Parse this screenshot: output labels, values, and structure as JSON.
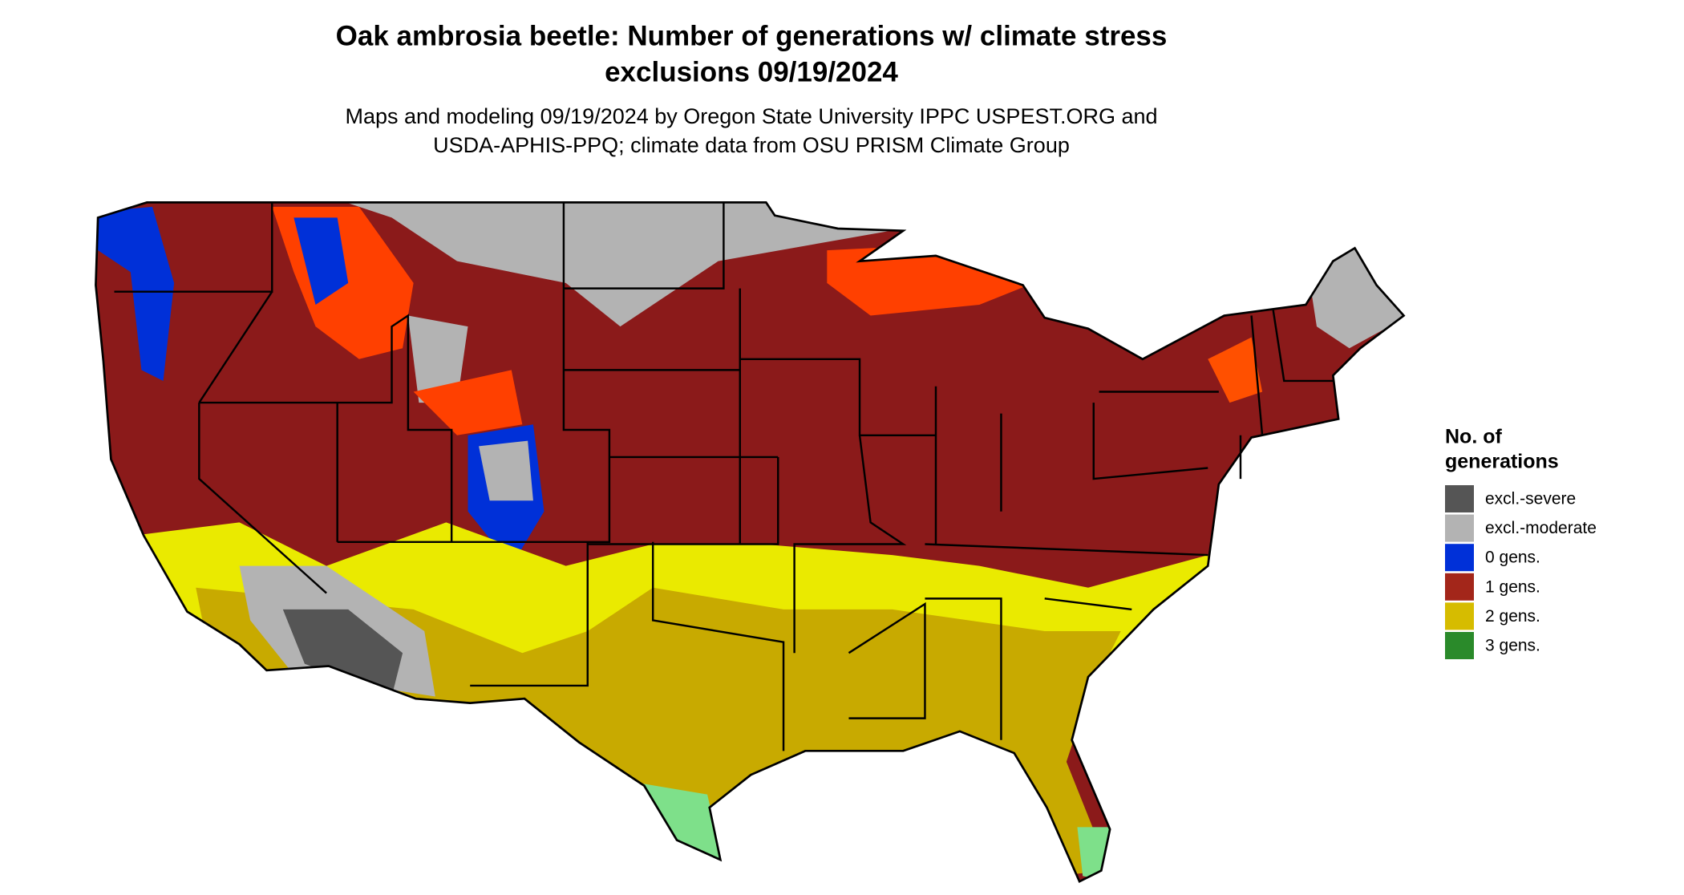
{
  "header": {
    "title": [
      "Oak ambrosia beetle: Number of generations w/ climate stress",
      "exclusions 09/19/2024"
    ],
    "subtitle": [
      "Maps and modeling 09/19/2024 by Oregon State University IPPC USPEST.ORG and",
      "USDA-APHIS-PPQ; climate data from OSU PRISM Climate Group"
    ]
  },
  "legend": {
    "title": [
      "No. of",
      "generations"
    ],
    "items": [
      {
        "label": "excl.-severe",
        "color": "#555555"
      },
      {
        "label": "excl.-moderate",
        "color": "#b3b3b3"
      },
      {
        "label": "0 gens.",
        "color": "#0030d8"
      },
      {
        "label": "1 gens.",
        "color": "#a3261a"
      },
      {
        "label": "2 gens.",
        "color": "#d6bc00"
      },
      {
        "label": "3 gens.",
        "color": "#2a8a2a"
      }
    ]
  }
}
